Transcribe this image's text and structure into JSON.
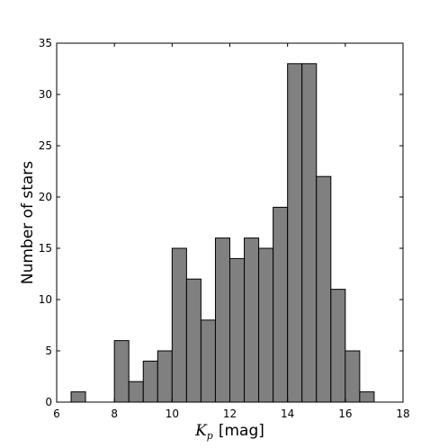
{
  "chart_data": {
    "type": "bar",
    "title": "",
    "xlabel_symbol": "K",
    "xlabel_subscript": "p",
    "xlabel_unit": "[mag]",
    "ylabel": "Number of stars",
    "xlim": [
      6,
      18
    ],
    "ylim": [
      0,
      35
    ],
    "xticks": [
      6,
      8,
      10,
      12,
      14,
      16,
      18
    ],
    "yticks": [
      0,
      5,
      10,
      15,
      20,
      25,
      30,
      35
    ],
    "bin_width": 0.5,
    "bin_starts": [
      6.5,
      7.0,
      7.5,
      8.0,
      8.5,
      9.0,
      9.5,
      10.0,
      10.5,
      11.0,
      11.5,
      12.0,
      12.5,
      13.0,
      13.5,
      14.0,
      14.5,
      15.0,
      15.5,
      16.0,
      16.5
    ],
    "values": [
      1,
      0,
      0,
      6,
      2,
      4,
      5,
      15,
      12,
      8,
      16,
      14,
      16,
      15,
      19,
      33,
      33,
      22,
      11,
      5,
      1
    ],
    "bar_color": "#808080",
    "edge_color": "#000000",
    "grid": false,
    "legend": "none"
  }
}
